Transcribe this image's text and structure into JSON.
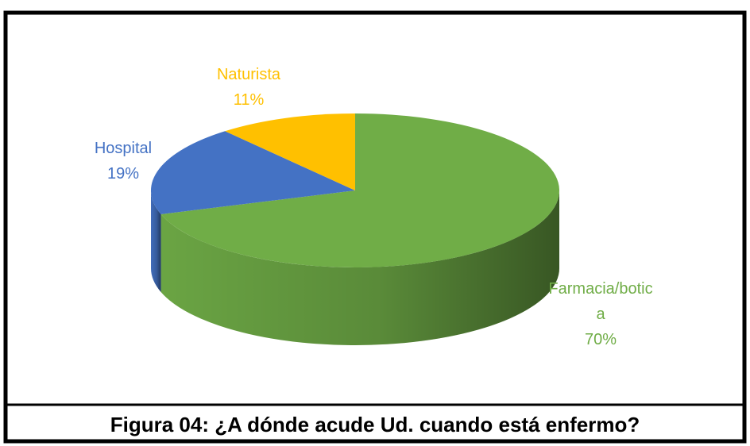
{
  "chart_data": {
    "type": "pie",
    "title": "Figura 04: ¿A dónde acude Ud. cuando está enfermo?",
    "categories": [
      "Farmacia/botica",
      "Hospital",
      "Naturista"
    ],
    "values": [
      70,
      19,
      11
    ],
    "value_labels": [
      "70%",
      "19%",
      "11%"
    ],
    "colors": [
      "#70ad47",
      "#4472c4",
      "#ffc000"
    ]
  }
}
